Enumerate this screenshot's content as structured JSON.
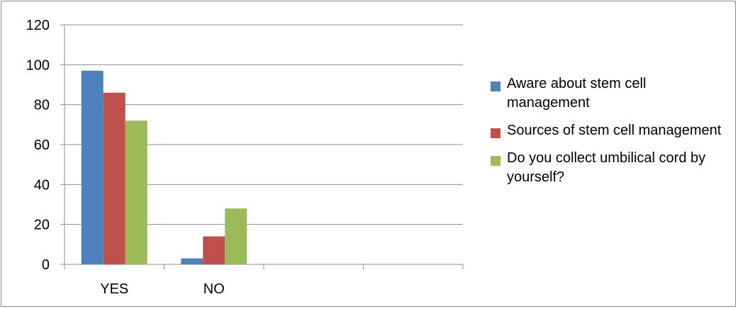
{
  "chart_data": {
    "type": "bar",
    "categories": [
      "YES",
      "NO",
      "",
      ""
    ],
    "series": [
      {
        "name": "Aware about stem cell management",
        "color": "#4F81BD",
        "values": [
          97,
          3,
          null,
          null
        ]
      },
      {
        "name": "Sources of stem cell management",
        "color": "#C0504D",
        "values": [
          86,
          14,
          null,
          null
        ]
      },
      {
        "name": "Do you collect umbilical cord by yourself?",
        "color": "#9BBB59",
        "values": [
          72,
          28,
          null,
          null
        ]
      }
    ],
    "ylim": [
      0,
      120
    ],
    "yticks": [
      0,
      20,
      40,
      60,
      80,
      100,
      120
    ],
    "grid": true,
    "legend_position": "right",
    "title": "",
    "xlabel": "",
    "ylabel": ""
  }
}
